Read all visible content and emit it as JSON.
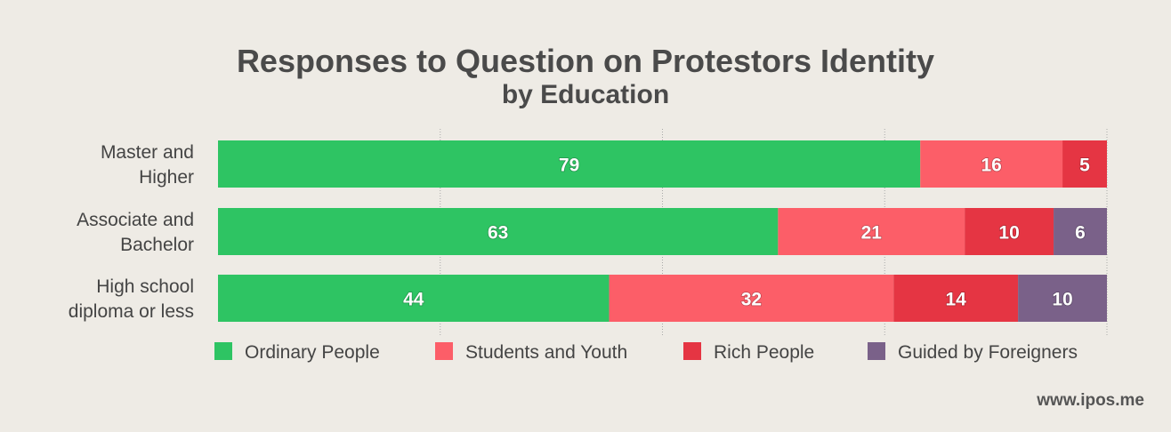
{
  "title": "Responses to Question on Protestors Identity",
  "subtitle": "by Education",
  "source": "www.ipos.me",
  "chart_data": {
    "type": "bar",
    "orientation": "horizontal",
    "stacked": true,
    "xlim": [
      0,
      100
    ],
    "grid": true,
    "legend_position": "bottom",
    "categories": [
      [
        "Master and",
        "Higher"
      ],
      [
        "Associate and",
        "Bachelor"
      ],
      [
        "High school",
        "diploma or less"
      ]
    ],
    "series": [
      {
        "name": "Ordinary People",
        "color": "#2ec463",
        "values": [
          79,
          63,
          44
        ]
      },
      {
        "name": "Students and Youth",
        "color": "#fc5e68",
        "values": [
          16,
          21,
          32
        ]
      },
      {
        "name": "Rich People",
        "color": "#e53543",
        "values": [
          5,
          10,
          14
        ]
      },
      {
        "name": "Guided by Foreigners",
        "color": "#7a6189",
        "values": [
          0,
          6,
          10
        ]
      }
    ]
  }
}
